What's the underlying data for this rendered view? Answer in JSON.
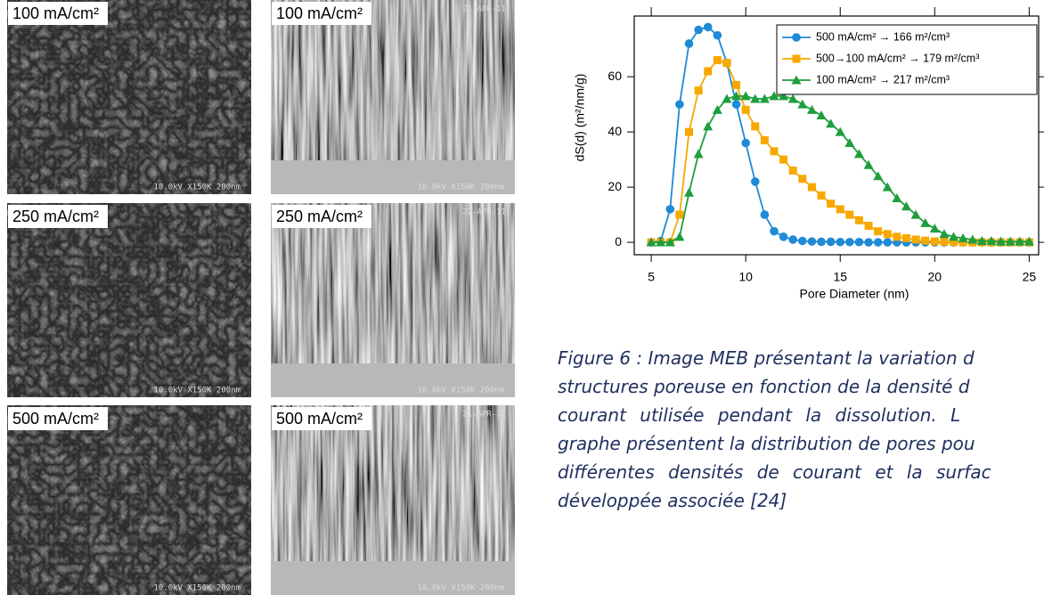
{
  "panels": [
    {
      "label": "100 mA/cm²",
      "info": "10.0kV X150K 200nm"
    },
    {
      "label": "100 mA/cm²",
      "info": "10.0kV X150K 200nm",
      "date": "21-APR-11"
    },
    {
      "label": "250 mA/cm²",
      "info": "10.0kV X150K 200nm"
    },
    {
      "label": "250 mA/cm²",
      "info": "10.0kV X150K 200nm",
      "date": "22-APR-11"
    },
    {
      "label": "500 mA/cm²",
      "info": "10.0kV X150K 200nm"
    },
    {
      "label": "500 mA/cm²",
      "info": "10.0kV X150K 200nm",
      "date": "21-APR-11"
    }
  ],
  "chart_data": {
    "type": "line",
    "x_label": "Pore Diameter (nm)",
    "y_label": "dS(d) (m²/nm/g)",
    "xlim": [
      4.1,
      25.5
    ],
    "ylim": [
      -4.5,
      82
    ],
    "xticks": [
      5,
      10,
      15,
      20,
      25
    ],
    "yticks": [
      0,
      20,
      40,
      60
    ],
    "legend": "top-right",
    "series": [
      {
        "name": "500 mA/cm² → 166 m²/cm³",
        "color": "#1f8ad6",
        "marker": "circle",
        "x": [
          5,
          5.5,
          6,
          6.5,
          7,
          7.5,
          8,
          8.5,
          9,
          9.5,
          10,
          10.5,
          11,
          11.5,
          12,
          12.5,
          13,
          13.5,
          14,
          14.5,
          15,
          15.5,
          16,
          16.5,
          17,
          17.5,
          18,
          18.5,
          19,
          19.5,
          20,
          20.5,
          21,
          21.5,
          22,
          22.5,
          23,
          23.5,
          24,
          24.5,
          25
        ],
        "values": [
          0,
          0.5,
          12,
          50,
          72,
          77,
          78,
          75,
          65,
          50,
          36,
          22,
          10,
          4,
          2,
          1,
          0.5,
          0.3,
          0.2,
          0.2,
          0.1,
          0.1,
          0.1,
          0,
          0,
          0,
          0,
          0,
          0,
          0,
          0,
          0,
          0,
          0,
          0,
          0,
          0,
          0,
          0,
          0,
          0
        ]
      },
      {
        "name": "500→100 mA/cm² → 179 m²/cm³",
        "color": "#f7a800",
        "marker": "square",
        "x": [
          5,
          5.5,
          6,
          6.5,
          7,
          7.5,
          8,
          8.5,
          9,
          9.5,
          10,
          10.5,
          11,
          11.5,
          12,
          12.5,
          13,
          13.5,
          14,
          14.5,
          15,
          15.5,
          16,
          16.5,
          17,
          17.5,
          18,
          18.5,
          19,
          19.5,
          20,
          20.5,
          21,
          21.5,
          22,
          22.5,
          23,
          23.5,
          24,
          24.5,
          25
        ],
        "values": [
          0,
          0,
          0,
          10,
          40,
          55,
          62,
          66,
          65,
          57,
          48,
          42,
          37,
          33,
          30,
          26,
          23,
          20,
          17,
          14,
          12,
          10,
          8,
          6,
          4,
          3,
          2,
          1.5,
          1,
          0.6,
          0.3,
          0.2,
          0.1,
          0,
          0,
          0,
          0,
          0,
          0,
          0,
          0
        ]
      },
      {
        "name": "100 mA/cm² → 217 m²/cm³",
        "color": "#1e9e3e",
        "marker": "triangle",
        "x": [
          5,
          5.5,
          6,
          6.5,
          7,
          7.5,
          8,
          8.5,
          9,
          9.5,
          10,
          10.5,
          11,
          11.5,
          12,
          12.5,
          13,
          13.5,
          14,
          14.5,
          15,
          15.5,
          16,
          16.5,
          17,
          17.5,
          18,
          18.5,
          19,
          19.5,
          20,
          20.5,
          21,
          21.5,
          22,
          22.5,
          23,
          23.5,
          24,
          24.5,
          25
        ],
        "values": [
          0,
          0,
          0,
          2,
          18,
          32,
          42,
          48,
          52,
          53,
          53,
          52,
          52,
          53,
          53,
          52,
          50,
          48,
          46,
          43,
          40,
          36,
          32,
          28,
          24,
          20,
          16,
          13,
          10,
          7,
          5,
          3,
          2,
          1.5,
          1,
          0.5,
          0.5,
          0.3,
          0.3,
          0.3,
          0.3
        ]
      }
    ]
  },
  "caption": {
    "lines": [
      "Figure 6 : Image MEB présentant la variation d",
      "structures poreuse en fonction de la densité d",
      "courant utilisée pendant la dissolution. L",
      "graphe présentent la distribution de pores pou",
      "différentes densités de courant et la surfac",
      "développée associée [24]"
    ]
  }
}
